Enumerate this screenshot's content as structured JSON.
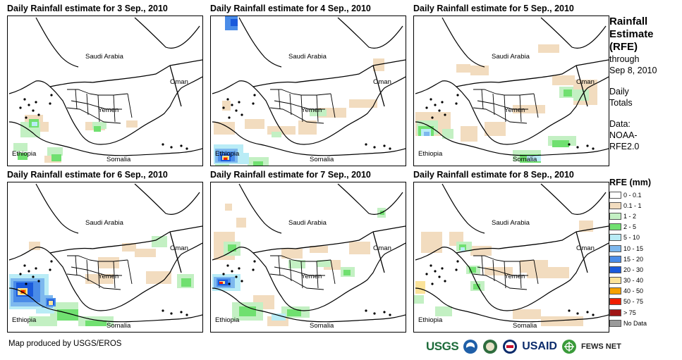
{
  "panels": [
    {
      "title": "Daily Rainfall estimate for 3 Sep., 2010",
      "rain": [
        {
          "lvl": "0.1-1",
          "cells": [
            [
              24,
              140,
              26,
              16
            ],
            [
              40,
              150,
              18,
              14
            ],
            [
              110,
              150,
              28,
              12
            ],
            [
              168,
              148,
              16,
              10
            ],
            [
              52,
              198,
              24,
              10
            ]
          ]
        },
        {
          "lvl": "1-2",
          "cells": [
            [
              18,
              150,
              28,
              22
            ],
            [
              8,
              180,
              20,
              12
            ],
            [
              56,
              186,
              22,
              12
            ],
            [
              120,
              150,
              20,
              10
            ]
          ]
        },
        {
          "lvl": "2-5",
          "cells": [
            [
              30,
              146,
              14,
              12
            ],
            [
              14,
              194,
              14,
              10
            ],
            [
              62,
              196,
              14,
              10
            ],
            [
              122,
              156,
              10,
              8
            ]
          ]
        },
        {
          "lvl": "5-10",
          "cells": [
            [
              34,
              150,
              8,
              6
            ]
          ]
        }
      ]
    },
    {
      "title": "Daily Rainfall estimate for 4 Sep., 2010",
      "rain": [
        {
          "lvl": "0.1-1",
          "cells": [
            [
              4,
              150,
              30,
              18
            ],
            [
              48,
              146,
              28,
              14
            ],
            [
              80,
              156,
              40,
              12
            ],
            [
              124,
              148,
              26,
              20
            ],
            [
              152,
              130,
              40,
              14
            ],
            [
              196,
              118,
              40,
              12
            ],
            [
              16,
              120,
              12,
              14
            ],
            [
              230,
              60,
              16,
              18
            ]
          ]
        },
        {
          "lvl": "1-2",
          "cells": [
            [
              6,
              196,
              20,
              16
            ],
            [
              52,
              200,
              30,
              12
            ],
            [
              86,
              164,
              14,
              8
            ],
            [
              140,
              132,
              24,
              10
            ]
          ]
        },
        {
          "lvl": "2-5",
          "cells": [
            [
              10,
              200,
              12,
              8
            ],
            [
              60,
              206,
              14,
              6
            ]
          ]
        },
        {
          "lvl": "5-10",
          "cells": [
            [
              4,
              182,
              42,
              28
            ],
            [
              36,
              194,
              18,
              16
            ]
          ]
        },
        {
          "lvl": "10-15",
          "cells": [
            [
              6,
              188,
              32,
              20
            ]
          ]
        },
        {
          "lvl": "15-20",
          "cells": [
            [
              10,
              192,
              24,
              14
            ],
            [
              20,
              0,
              18,
              20
            ]
          ]
        },
        {
          "lvl": "20-30",
          "cells": [
            [
              14,
              196,
              14,
              10
            ],
            [
              28,
              4,
              10,
              10
            ]
          ]
        },
        {
          "lvl": "30-40",
          "cells": [
            [
              16,
              198,
              10,
              6
            ]
          ]
        },
        {
          "lvl": "40-50",
          "cells": [
            [
              18,
              200,
              6,
              4
            ]
          ]
        },
        {
          "lvl": "50-75",
          "cells": [
            [
              18,
              201,
              5,
              3
            ]
          ]
        }
      ]
    },
    {
      "title": "Daily Rainfall estimate for 5 Sep., 2010",
      "rain": [
        {
          "lvl": "0.1-1",
          "cells": [
            [
              2,
              136,
              50,
              34
            ],
            [
              66,
              156,
              24,
              22
            ],
            [
              100,
              150,
              30,
              20
            ],
            [
              140,
              126,
              46,
              12
            ],
            [
              196,
              84,
              32,
              14
            ],
            [
              176,
              40,
              30,
              12
            ],
            [
              60,
              68,
              20,
              12
            ],
            [
              80,
              70,
              26,
              14
            ],
            [
              226,
              90,
              34,
              36
            ]
          ]
        },
        {
          "lvl": "1-2",
          "cells": [
            [
              4,
              148,
              30,
              20
            ],
            [
              40,
              160,
              16,
              14
            ],
            [
              206,
              100,
              20,
              16
            ],
            [
              226,
              104,
              22,
              16
            ],
            [
              140,
              190,
              40,
              16
            ],
            [
              190,
              170,
              40,
              14
            ]
          ]
        },
        {
          "lvl": "2-5",
          "cells": [
            [
              6,
              156,
              22,
              14
            ],
            [
              212,
              104,
              12,
              10
            ],
            [
              150,
              196,
              30,
              12
            ],
            [
              196,
              176,
              24,
              10
            ]
          ]
        },
        {
          "lvl": "5-10",
          "cells": [
            [
              10,
              160,
              14,
              10
            ],
            [
              160,
              198,
              20,
              8
            ]
          ]
        },
        {
          "lvl": "10-15",
          "cells": [
            [
              14,
              164,
              8,
              6
            ]
          ]
        }
      ]
    },
    {
      "title": "Daily Rainfall estimate for 6 Sep., 2010",
      "rain": [
        {
          "lvl": "0.1-1",
          "cells": [
            [
              30,
              84,
              16,
              12
            ],
            [
              128,
              106,
              30,
              16
            ],
            [
              162,
              86,
              20,
              12
            ],
            [
              180,
              94,
              30,
              12
            ],
            [
              110,
              130,
              40,
              14
            ],
            [
              196,
              126,
              36,
              18
            ]
          ]
        },
        {
          "lvl": "1-2",
          "cells": [
            [
              60,
              170,
              40,
              24
            ],
            [
              100,
              190,
              50,
              14
            ],
            [
              30,
              190,
              40,
              14
            ],
            [
              204,
              76,
              22,
              16
            ],
            [
              240,
              130,
              24,
              20
            ]
          ]
        },
        {
          "lvl": "2-5",
          "cells": [
            [
              70,
              180,
              30,
              16
            ],
            [
              110,
              196,
              30,
              8
            ],
            [
              246,
              136,
              14,
              12
            ]
          ]
        },
        {
          "lvl": "5-10",
          "cells": [
            [
              2,
              130,
              56,
              50
            ],
            [
              40,
              170,
              26,
              16
            ]
          ]
        },
        {
          "lvl": "10-15",
          "cells": [
            [
              4,
              136,
              48,
              40
            ],
            [
              48,
              160,
              16,
              18
            ]
          ]
        },
        {
          "lvl": "15-20",
          "cells": [
            [
              8,
              140,
              38,
              30
            ],
            [
              54,
              164,
              14,
              12
            ]
          ]
        },
        {
          "lvl": "20-30",
          "cells": [
            [
              12,
              142,
              24,
              20
            ],
            [
              56,
              166,
              10,
              8
            ]
          ]
        },
        {
          "lvl": "30-40",
          "cells": [
            [
              14,
              150,
              14,
              10
            ],
            [
              58,
              168,
              6,
              6
            ]
          ]
        },
        {
          "lvl": "40-50",
          "cells": [
            [
              18,
              152,
              8,
              6
            ]
          ]
        },
        {
          "lvl": "50-75",
          "cells": [
            [
              19,
              153,
              5,
              4
            ]
          ]
        }
      ]
    },
    {
      "title": "Daily Rainfall estimate for 7 Sep., 2010",
      "rain": [
        {
          "lvl": "0.1-1",
          "cells": [
            [
              4,
              70,
              30,
              40
            ],
            [
              20,
              30,
              10,
              10
            ],
            [
              36,
              50,
              14,
              14
            ],
            [
              140,
              90,
              26,
              10
            ],
            [
              160,
              110,
              24,
              14
            ],
            [
              100,
              94,
              30,
              14
            ],
            [
              196,
              84,
              30,
              18
            ],
            [
              60,
              160,
              30,
              20
            ],
            [
              80,
              190,
              30,
              14
            ]
          ]
        },
        {
          "lvl": "1-2",
          "cells": [
            [
              18,
              84,
              24,
              20
            ],
            [
              110,
              110,
              24,
              12
            ],
            [
              150,
              110,
              20,
              10
            ],
            [
              30,
              170,
              44,
              26
            ],
            [
              100,
              176,
              40,
              16
            ],
            [
              184,
              120,
              20,
              14
            ],
            [
              236,
              36,
              12,
              14
            ]
          ]
        },
        {
          "lvl": "2-5",
          "cells": [
            [
              24,
              88,
              12,
              10
            ],
            [
              40,
              176,
              24,
              14
            ],
            [
              108,
              180,
              20,
              10
            ],
            [
              188,
              124,
              10,
              8
            ],
            [
              240,
              40,
              6,
              6
            ]
          ]
        },
        {
          "lvl": "5-10",
          "cells": [
            [
              2,
              130,
              40,
              24
            ],
            [
              86,
              186,
              20,
              10
            ]
          ]
        },
        {
          "lvl": "10-15",
          "cells": [
            [
              4,
              134,
              30,
              16
            ]
          ]
        },
        {
          "lvl": "15-20",
          "cells": [
            [
              8,
              136,
              20,
              12
            ]
          ]
        },
        {
          "lvl": "20-30",
          "cells": [
            [
              10,
              138,
              14,
              8
            ]
          ]
        },
        {
          "lvl": "30-40",
          "cells": [
            [
              12,
              140,
              8,
              4
            ]
          ]
        },
        {
          "lvl": "50-75",
          "cells": [
            [
              12,
              141,
              5,
              3
            ]
          ]
        }
      ]
    },
    {
      "title": "Daily Rainfall estimate for 8 Sep., 2010",
      "rain": [
        {
          "lvl": "0.1-1",
          "cells": [
            [
              10,
              70,
              30,
              30
            ],
            [
              50,
              70,
              20,
              20
            ],
            [
              80,
              90,
              30,
              14
            ],
            [
              100,
              120,
              40,
              12
            ],
            [
              150,
              110,
              40,
              18
            ],
            [
              160,
              120,
              60,
              16
            ],
            [
              140,
              180,
              40,
              14
            ],
            [
              180,
              190,
              60,
              14
            ],
            [
              234,
              54,
              20,
              16
            ]
          ]
        },
        {
          "lvl": "1-2",
          "cells": [
            [
              60,
              84,
              22,
              14
            ],
            [
              74,
              118,
              20,
              12
            ],
            [
              80,
              140,
              20,
              14
            ],
            [
              30,
              176,
              24,
              14
            ],
            [
              0,
              160,
              14,
              12
            ]
          ]
        },
        {
          "lvl": "2-5",
          "cells": [
            [
              64,
              88,
              10,
              8
            ],
            [
              78,
              120,
              10,
              8
            ],
            [
              84,
              144,
              10,
              8
            ]
          ]
        },
        {
          "lvl": "5-10",
          "cells": [
            [
              66,
              92,
              6,
              6
            ]
          ]
        },
        {
          "lvl": "30-40",
          "cells": [
            [
              2,
              140,
              14,
              18
            ]
          ]
        }
      ]
    }
  ],
  "map_labels": {
    "saudi": "Saudi Arabia",
    "oman": "Oman",
    "yemen": "Yemen",
    "ethiopia": "Ethiopia",
    "somalia": "Somalia"
  },
  "side": {
    "title_1": "Rainfall",
    "title_2": "Estimate",
    "title_3": "(RFE)",
    "through": "through",
    "date": "Sep 8, 2010",
    "daily_1": "Daily",
    "daily_2": "Totals",
    "data_1": "Data:",
    "data_2": "NOAA-",
    "data_3": "RFE2.0"
  },
  "legend": {
    "title": "RFE (mm)",
    "items": [
      {
        "label": "0 - 0.1",
        "color": "#ffffff",
        "key": "0-0.1"
      },
      {
        "label": "0.1 - 1",
        "color": "#f2dcbf",
        "key": "0.1-1"
      },
      {
        "label": "1 - 2",
        "color": "#c3f0c3",
        "key": "1-2"
      },
      {
        "label": "2 - 5",
        "color": "#70e070",
        "key": "2-5"
      },
      {
        "label": "5 - 10",
        "color": "#b9ecf6",
        "key": "5-10"
      },
      {
        "label": "10 - 15",
        "color": "#7db8ee",
        "key": "10-15"
      },
      {
        "label": "15 - 20",
        "color": "#4a8ce8",
        "key": "15-20"
      },
      {
        "label": "20 - 30",
        "color": "#1a5adc",
        "key": "20-30"
      },
      {
        "label": "30 - 40",
        "color": "#fbe39a",
        "key": "30-40"
      },
      {
        "label": "40 - 50",
        "color": "#f5a000",
        "key": "40-50"
      },
      {
        "label": "50 - 75",
        "color": "#f01e00",
        "key": "50-75"
      },
      {
        "label": "> 75",
        "color": "#a01414",
        "key": ">75"
      },
      {
        "label": "No Data",
        "color": "#9a9a9a",
        "key": "nodata"
      }
    ]
  },
  "footer": "Map produced by USGS/EROS",
  "logos": {
    "usgs": "USGS",
    "usaid": "USAID",
    "fews": "FEWS NET"
  }
}
